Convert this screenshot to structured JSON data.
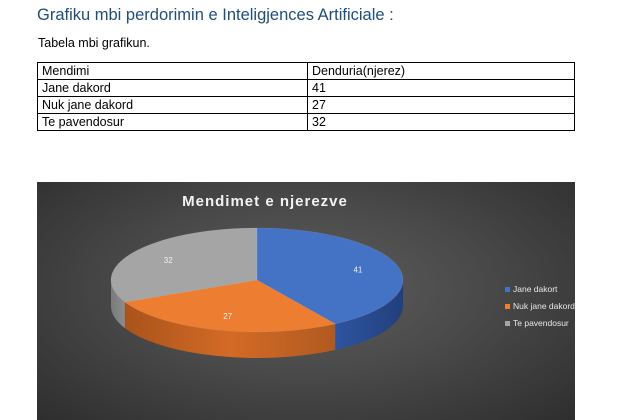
{
  "heading": "Grafiku mbi perdorimin e Inteligjences Artificiale :",
  "caption": "Tabela mbi grafikun.",
  "table": {
    "headers": [
      "Mendimi",
      "Denduria(njerez)"
    ],
    "rows": [
      [
        "Jane dakord",
        "41"
      ],
      [
        "Nuk jane dakord",
        "27"
      ],
      [
        "Te pavendosur",
        "32"
      ]
    ]
  },
  "chart_data": {
    "type": "pie",
    "title": "Mendimet e njerezve",
    "categories": [
      "Jane dakort",
      "Nuk jane dakord",
      "Te pavendosur"
    ],
    "values": [
      41,
      27,
      32
    ],
    "colors": [
      "#4472c4",
      "#ed7d31",
      "#a5a5a5"
    ],
    "legend_position": "right",
    "data_labels": [
      "41",
      "27",
      "32"
    ]
  }
}
